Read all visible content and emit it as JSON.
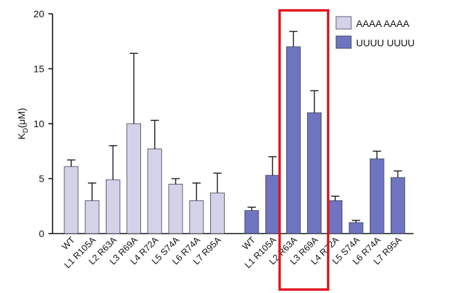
{
  "chart_data": {
    "type": "bar",
    "ylabel": "K",
    "ylabel_subscript": "D",
    "ylabel_unit": "(μM)",
    "ylim": [
      0,
      20
    ],
    "yticks": [
      0,
      5,
      10,
      15,
      20
    ],
    "grid": false,
    "legend": "top-right",
    "categories": [
      "WT",
      "L1 R105A",
      "L2 R63A",
      "L3 R69A",
      "L4 R72A",
      "L5 S74A",
      "L6 R74A",
      "L7 R95A"
    ],
    "series": [
      {
        "name": "AAAA AAAA",
        "color": "#d4d2e8",
        "values": [
          6.1,
          3.0,
          4.9,
          10.0,
          7.7,
          4.5,
          3.0,
          3.7
        ],
        "errors": [
          0.6,
          1.6,
          3.1,
          6.4,
          2.6,
          0.5,
          1.6,
          1.8
        ]
      },
      {
        "name": "UUUU UUUU",
        "color": "#6e74c0",
        "values": [
          2.1,
          5.3,
          17.0,
          11.0,
          3.0,
          1.0,
          6.8,
          5.1
        ],
        "errors": [
          0.3,
          1.7,
          1.4,
          2.0,
          0.4,
          0.2,
          0.7,
          0.6
        ]
      }
    ],
    "highlight": {
      "series": 1,
      "categories": [
        "L2 R63A",
        "L3 R69A"
      ],
      "color": "#e0141c"
    }
  }
}
